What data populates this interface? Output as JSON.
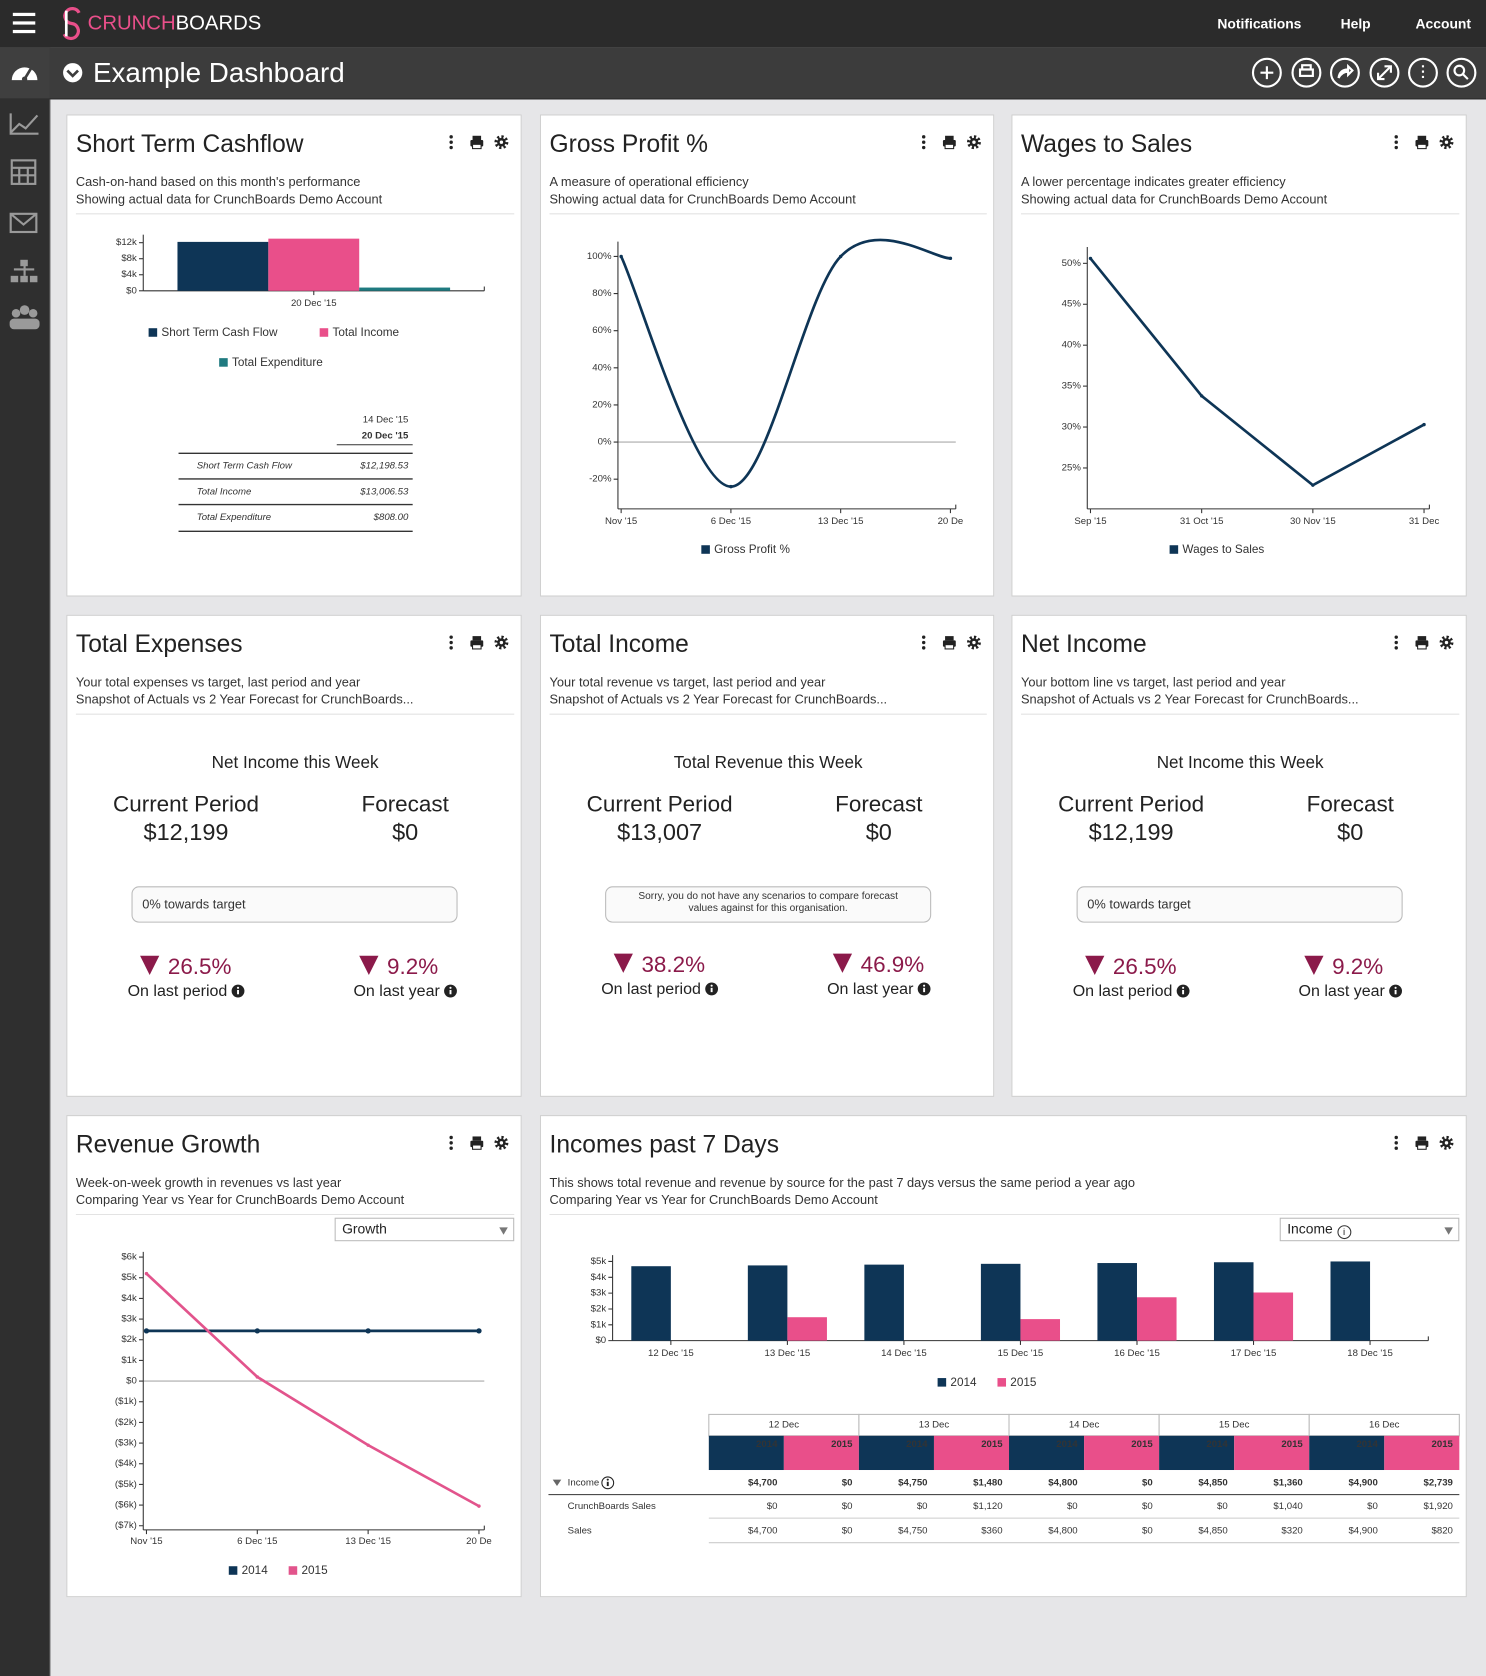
{
  "header": {
    "logo": [
      "CRUNCH",
      "BOARDS"
    ],
    "nav": [
      "Notifications",
      "Help",
      "Account"
    ]
  },
  "toolbar": {
    "title": "Example Dashboard"
  },
  "widgets": [
    {
      "title": "Short Term Cashflow",
      "subtitle": [
        "Cash-on-hand based on this month's performance",
        "Showing actual data for CrunchBoards Demo Account"
      ],
      "chart": {
        "type": "bar",
        "categories": [
          "20 Dec '15"
        ],
        "series": [
          {
            "name": "Short Term Cash Flow",
            "color": "#0e3556",
            "values": [
              12198.53
            ]
          },
          {
            "name": "Total Income",
            "color": "#e94f8a",
            "values": [
              13006.53
            ]
          },
          {
            "name": "Total Expenditure",
            "color": "#1f7a80",
            "values": [
              808
            ]
          }
        ],
        "ylim": [
          0,
          14000
        ],
        "yticks": [
          {
            "value": 0,
            "label": "$0"
          },
          {
            "value": 4000,
            "label": "$4k"
          },
          {
            "value": 8000,
            "label": "$8k"
          },
          {
            "value": 12000,
            "label": "$12k"
          }
        ]
      },
      "table": {
        "columns": [
          "14 Dec '15",
          "20 Dec '15"
        ],
        "rows": [
          [
            "Short Term Cash Flow",
            "$12,198.53"
          ],
          [
            "Total Income",
            "$13,006.53"
          ],
          [
            "Total Expenditure",
            "$808.00"
          ]
        ]
      }
    },
    {
      "title": "Gross Profit %",
      "subtitle": [
        "A measure of operational efficiency",
        "Showing actual data for CrunchBoards Demo Account"
      ],
      "chart": {
        "type": "line",
        "smooth": true,
        "zero_line": true,
        "categories": [
          "Nov '15",
          "6 Dec '15",
          "13 Dec '15",
          "20 De"
        ],
        "series": [
          {
            "name": "Gross Profit %",
            "color": "#0e3556",
            "values": [
              100,
              -24,
              100,
              99
            ]
          }
        ],
        "ylim": [
          -36,
          108
        ],
        "yticks": [
          {
            "value": -20,
            "label": "-20%"
          },
          {
            "value": 0,
            "label": "0%"
          },
          {
            "value": 20,
            "label": "20%"
          },
          {
            "value": 40,
            "label": "40%"
          },
          {
            "value": 60,
            "label": "60%"
          },
          {
            "value": 80,
            "label": "80%"
          },
          {
            "value": 100,
            "label": "100%"
          }
        ]
      }
    },
    {
      "title": "Wages to Sales",
      "subtitle": [
        "A lower percentage indicates greater efficiency",
        "Showing actual data for CrunchBoards Demo Account"
      ],
      "chart": {
        "type": "line",
        "categories": [
          "Sep '15",
          "31 Oct '15",
          "30 Nov '15",
          "31 Dec"
        ],
        "series": [
          {
            "name": "Wages to Sales",
            "color": "#0e3556",
            "values": [
              50.6,
              33.8,
              22.9,
              30.3
            ]
          }
        ],
        "ylim": [
          20,
          52
        ],
        "yticks": [
          {
            "value": 25,
            "label": "25%"
          },
          {
            "value": 30,
            "label": "30%"
          },
          {
            "value": 35,
            "label": "35%"
          },
          {
            "value": 40,
            "label": "40%"
          },
          {
            "value": 45,
            "label": "45%"
          },
          {
            "value": 50,
            "label": "50%"
          }
        ]
      }
    },
    {
      "title": "Total Expenses",
      "subtitle": [
        "Your total expenses vs target, last period and year",
        "Snapshot of Actuals vs 2 Year Forecast for CrunchBoards..."
      ],
      "kpi": {
        "heading": "Net Income this Week",
        "current_label": "Current Period",
        "current_value": "$12,199",
        "forecast_label": "Forecast",
        "forecast_value": "$0",
        "note": "0% towards target",
        "last_period_change": "26.5%",
        "last_period_label": "On last period",
        "last_year_change": "9.2%",
        "last_year_label": "On last year"
      }
    },
    {
      "title": "Total Income",
      "subtitle": [
        "Your total revenue vs target, last period and year",
        "Snapshot of Actuals vs 2 Year Forecast for CrunchBoards..."
      ],
      "kpi": {
        "heading": "Total Revenue this Week",
        "current_label": "Current Period",
        "current_value": "$13,007",
        "forecast_label": "Forecast",
        "forecast_value": "$0",
        "note": "Sorry, you do not have any scenarios to compare forecast values against for this organisation.",
        "last_period_change": "38.2%",
        "last_period_label": "On last period",
        "last_year_change": "46.9%",
        "last_year_label": "On last year"
      }
    },
    {
      "title": "Net Income",
      "subtitle": [
        "Your bottom line vs target, last period and year",
        "Snapshot of Actuals vs 2 Year Forecast for CrunchBoards..."
      ],
      "kpi": {
        "heading": "Net Income this Week",
        "current_label": "Current Period",
        "current_value": "$12,199",
        "forecast_label": "Forecast",
        "forecast_value": "$0",
        "note": "0% towards target",
        "last_period_change": "26.5%",
        "last_period_label": "On last period",
        "last_year_change": "9.2%",
        "last_year_label": "On last year"
      }
    },
    {
      "title": "Revenue Growth",
      "subtitle": [
        "Week-on-week growth in revenues vs last year",
        "Comparing Year vs Year for CrunchBoards Demo Account"
      ],
      "dropdown": "Growth",
      "chart": {
        "type": "line",
        "zero_line": true,
        "categories": [
          "Nov '15",
          "6 Dec '15",
          "13 Dec '15",
          "20 De"
        ],
        "series": [
          {
            "name": "2014",
            "color": "#0e3556",
            "markers": true,
            "values": [
              2430,
              2430,
              2430,
              2430
            ]
          },
          {
            "name": "2015",
            "color": "#e2548c",
            "values": [
              5200,
              200,
              -3100,
              -6050
            ]
          }
        ],
        "ylim": [
          -7200,
          6250
        ],
        "yticks": [
          {
            "value": -7000,
            "label": "($7k)"
          },
          {
            "value": -6000,
            "label": "($6k)"
          },
          {
            "value": -5000,
            "label": "($5k)"
          },
          {
            "value": -4000,
            "label": "($4k)"
          },
          {
            "value": -3000,
            "label": "($3k)"
          },
          {
            "value": -2000,
            "label": "($2k)"
          },
          {
            "value": -1000,
            "label": "($1k)"
          },
          {
            "value": 0,
            "label": "$0"
          },
          {
            "value": 1000,
            "label": "$1k"
          },
          {
            "value": 2000,
            "label": "$2k"
          },
          {
            "value": 3000,
            "label": "$3k"
          },
          {
            "value": 4000,
            "label": "$4k"
          },
          {
            "value": 5000,
            "label": "$5k"
          },
          {
            "value": 6000,
            "label": "$6k"
          }
        ]
      }
    },
    {
      "title": "Incomes past 7 Days",
      "subtitle": [
        "This shows total revenue and revenue by source for the past 7 days versus the same period a year ago",
        "Comparing Year vs Year for CrunchBoards Demo Account"
      ],
      "dropdown": "Income",
      "chart": {
        "type": "bar",
        "categories": [
          "12 Dec '15",
          "13 Dec '15",
          "14 Dec '15",
          "15 Dec '15",
          "16 Dec '15",
          "17 Dec '15",
          "18 Dec '15"
        ],
        "series": [
          {
            "name": "2014",
            "color": "#0e3556",
            "values": [
              4700,
              4750,
              4800,
              4850,
              4900,
              4950,
              5000
            ]
          },
          {
            "name": "2015",
            "color": "#e94f8a",
            "values": [
              0,
              1480,
              0,
              1360,
              2739,
              3040,
              0
            ]
          }
        ],
        "ylim": [
          0,
          5400
        ],
        "yticks": [
          {
            "value": 0,
            "label": "$0"
          },
          {
            "value": 1000,
            "label": "$1k"
          },
          {
            "value": 2000,
            "label": "$2k"
          },
          {
            "value": 3000,
            "label": "$3k"
          },
          {
            "value": 4000,
            "label": "$4k"
          },
          {
            "value": 5000,
            "label": "$5k"
          }
        ]
      },
      "table": {
        "dates": [
          "12 Dec",
          "13 Dec",
          "14 Dec",
          "15 Dec",
          "16 Dec"
        ],
        "years": [
          "2014",
          "2015"
        ],
        "rows": [
          {
            "label": "Income",
            "values": [
              "$4,700",
              "$0",
              "$4,750",
              "$1,480",
              "$4,800",
              "$0",
              "$4,850",
              "$1,360",
              "$4,900",
              "$2,739"
            ]
          },
          {
            "label": "CrunchBoards Sales",
            "values": [
              "$0",
              "$0",
              "$0",
              "$1,120",
              "$0",
              "$0",
              "$0",
              "$1,040",
              "$0",
              "$1,920"
            ]
          },
          {
            "label": "Sales",
            "values": [
              "$4,700",
              "$0",
              "$4,750",
              "$360",
              "$4,800",
              "$0",
              "$4,850",
              "$320",
              "$4,900",
              "$820"
            ]
          }
        ]
      }
    }
  ]
}
